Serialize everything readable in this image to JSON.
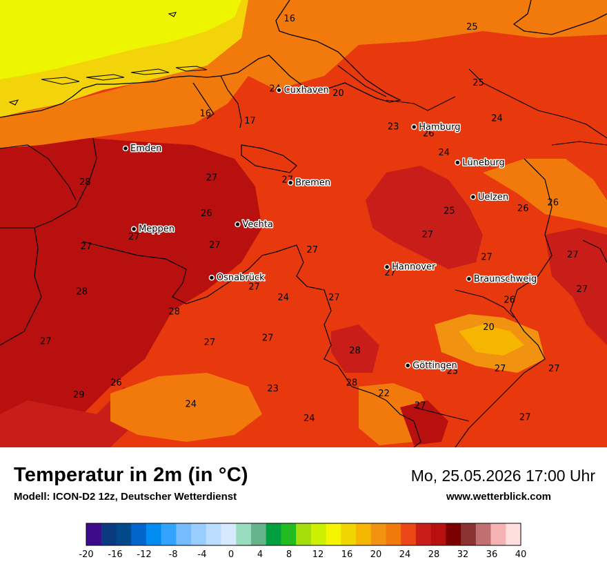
{
  "title": "Temperatur in 2m (in °C)",
  "model": "Modell: ICON-D2 12z, Deutscher Wetterdienst",
  "datetime": "Mo, 25.05.2026 17:00 Uhr",
  "website": "www.wetterblick.com",
  "cities": [
    {
      "name": "Cuxhaven",
      "lon": 8.69,
      "lat": 53.86
    },
    {
      "name": "Hamburg",
      "lon": 9.99,
      "lat": 53.55
    },
    {
      "name": "Emden",
      "lon": 7.21,
      "lat": 53.37
    },
    {
      "name": "Lüneburg",
      "lon": 10.41,
      "lat": 53.25
    },
    {
      "name": "Bremen",
      "lon": 8.8,
      "lat": 53.08
    },
    {
      "name": "Uelzen",
      "lon": 10.56,
      "lat": 52.96
    },
    {
      "name": "Vechta",
      "lon": 8.29,
      "lat": 52.73
    },
    {
      "name": "Meppen",
      "lon": 7.29,
      "lat": 52.69
    },
    {
      "name": "Hannover",
      "lon": 9.73,
      "lat": 52.37
    },
    {
      "name": "Osnabrück",
      "lon": 8.04,
      "lat": 52.28
    },
    {
      "name": "Braunschweig",
      "lon": 10.52,
      "lat": 52.27
    },
    {
      "name": "Göttingen",
      "lon": 9.93,
      "lat": 51.54
    }
  ],
  "temperature_labels": [
    {
      "value": "16",
      "lon": 8.79,
      "lat": 54.44
    },
    {
      "value": "25",
      "lon": 10.55,
      "lat": 54.37
    },
    {
      "value": "24",
      "lon": 8.65,
      "lat": 53.85
    },
    {
      "value": "20",
      "lon": 9.26,
      "lat": 53.81
    },
    {
      "value": "25",
      "lon": 10.61,
      "lat": 53.9
    },
    {
      "value": "16",
      "lon": 7.98,
      "lat": 53.64
    },
    {
      "value": "17",
      "lon": 8.41,
      "lat": 53.58
    },
    {
      "value": "23",
      "lon": 9.79,
      "lat": 53.53
    },
    {
      "value": "24",
      "lon": 10.79,
      "lat": 53.6
    },
    {
      "value": "26",
      "lon": 10.13,
      "lat": 53.47
    },
    {
      "value": "24",
      "lon": 10.28,
      "lat": 53.31
    },
    {
      "value": "27",
      "lon": 8.04,
      "lat": 53.1
    },
    {
      "value": "28",
      "lon": 6.82,
      "lat": 53.06
    },
    {
      "value": "27",
      "lon": 8.77,
      "lat": 53.08
    },
    {
      "value": "26",
      "lon": 11.33,
      "lat": 52.89
    },
    {
      "value": "26",
      "lon": 11.04,
      "lat": 52.84
    },
    {
      "value": "26",
      "lon": 7.99,
      "lat": 52.8
    },
    {
      "value": "25",
      "lon": 10.33,
      "lat": 52.82
    },
    {
      "value": "27",
      "lon": 7.29,
      "lat": 52.6
    },
    {
      "value": "27",
      "lon": 10.12,
      "lat": 52.62
    },
    {
      "value": "27",
      "lon": 8.07,
      "lat": 52.53
    },
    {
      "value": "27",
      "lon": 6.83,
      "lat": 52.52
    },
    {
      "value": "27",
      "lon": 9.01,
      "lat": 52.49
    },
    {
      "value": "27",
      "lon": 10.69,
      "lat": 52.43
    },
    {
      "value": "27",
      "lon": 11.52,
      "lat": 52.45
    },
    {
      "value": "27",
      "lon": 9.76,
      "lat": 52.3
    },
    {
      "value": "27",
      "lon": 8.45,
      "lat": 52.18
    },
    {
      "value": "28",
      "lon": 6.79,
      "lat": 52.14
    },
    {
      "value": "27",
      "lon": 11.61,
      "lat": 52.16
    },
    {
      "value": "24",
      "lon": 8.73,
      "lat": 52.09
    },
    {
      "value": "27",
      "lon": 9.22,
      "lat": 52.09
    },
    {
      "value": "26",
      "lon": 10.91,
      "lat": 52.07
    },
    {
      "value": "28",
      "lon": 7.68,
      "lat": 51.97
    },
    {
      "value": "20",
      "lon": 10.71,
      "lat": 51.84
    },
    {
      "value": "27",
      "lon": 6.44,
      "lat": 51.72
    },
    {
      "value": "27",
      "lon": 8.02,
      "lat": 51.71
    },
    {
      "value": "27",
      "lon": 8.58,
      "lat": 51.75
    },
    {
      "value": "28",
      "lon": 9.42,
      "lat": 51.64
    },
    {
      "value": "23",
      "lon": 10.36,
      "lat": 51.47
    },
    {
      "value": "27",
      "lon": 10.82,
      "lat": 51.49
    },
    {
      "value": "27",
      "lon": 11.34,
      "lat": 51.49
    },
    {
      "value": "26",
      "lon": 7.12,
      "lat": 51.37
    },
    {
      "value": "28",
      "lon": 9.39,
      "lat": 51.37
    },
    {
      "value": "23",
      "lon": 8.63,
      "lat": 51.32
    },
    {
      "value": "29",
      "lon": 6.76,
      "lat": 51.27
    },
    {
      "value": "22",
      "lon": 9.7,
      "lat": 51.28
    },
    {
      "value": "24",
      "lon": 7.84,
      "lat": 51.19
    },
    {
      "value": "27",
      "lon": 10.05,
      "lat": 51.18
    },
    {
      "value": "24",
      "lon": 8.98,
      "lat": 51.07
    },
    {
      "value": "27",
      "lon": 11.06,
      "lat": 51.08
    }
  ],
  "colorbar": {
    "min": -20,
    "max": 40,
    "step": 2,
    "tick_labels": [
      "-20",
      "-16",
      "-12",
      "-8",
      "-4",
      "0",
      "4",
      "8",
      "12",
      "16",
      "20",
      "24",
      "28",
      "32",
      "36",
      "40"
    ],
    "colors": [
      "#3d0b8c",
      "#0b3a80",
      "#004a8c",
      "#0066cc",
      "#008cf0",
      "#33a3ff",
      "#77bbff",
      "#99ccff",
      "#bbddff",
      "#d6e9ff",
      "#99dcbf",
      "#66b38c",
      "#00a040",
      "#22bb22",
      "#a3dd0a",
      "#ccee00",
      "#f5f500",
      "#f0d500",
      "#f5b500",
      "#f29211",
      "#f27a0c",
      "#ec4516",
      "#c91d1a",
      "#b7100f",
      "#7d0000",
      "#8b3333",
      "#c07070",
      "#f5b2b2",
      "#ffdede"
    ]
  }
}
